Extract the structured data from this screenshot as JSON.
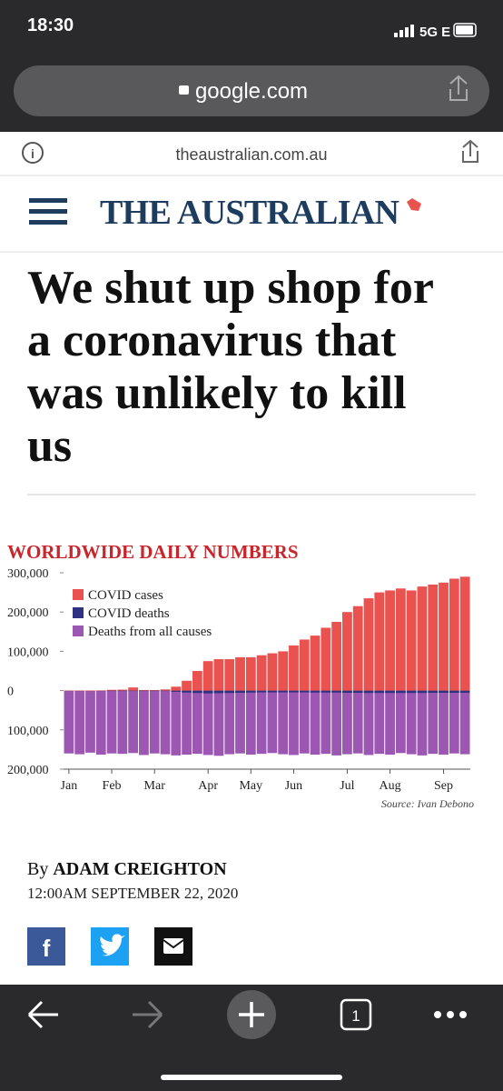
{
  "status": {
    "time": "18:30",
    "network": "5G E"
  },
  "browser": {
    "address": "google.com",
    "site": "theaustralian.com.au",
    "tabs": "1"
  },
  "masthead": "THE AUSTRALIAN",
  "headline": [
    "We shut up shop for",
    "a coronavirus that",
    "was unlikely to kill",
    "us"
  ],
  "byline": {
    "prefix": "By",
    "author": "ADAM CREIGHTON",
    "date": "12:00AM SEPTEMBER 22, 2020"
  },
  "social": {
    "facebook": "f"
  },
  "chart_data": {
    "type": "bar",
    "title": "WORLDWIDE DAILY NUMBERS",
    "source": "Source: Ivan Debono",
    "categories": [
      "Jan",
      null,
      null,
      null,
      "Feb",
      null,
      null,
      null,
      "Mar",
      null,
      null,
      null,
      null,
      "Apr",
      null,
      null,
      null,
      "May",
      null,
      null,
      null,
      "Jun",
      null,
      null,
      null,
      null,
      "Jul",
      null,
      null,
      null,
      "Aug",
      null,
      null,
      null,
      null,
      "Sep",
      null,
      null
    ],
    "series": [
      {
        "name": "Deaths from all causes",
        "color": "#9b57b2",
        "values": [
          -160000,
          -162000,
          -158000,
          -163000,
          -160000,
          -161000,
          -159000,
          -164000,
          -160000,
          -162000,
          -165000,
          -163000,
          -161000,
          -164000,
          -166000,
          -162000,
          -160000,
          -163000,
          -161000,
          -159000,
          -162000,
          -164000,
          -160000,
          -163000,
          -161000,
          -165000,
          -162000,
          -160000,
          -164000,
          -161000,
          -163000,
          -159000,
          -162000,
          -165000,
          -161000,
          -163000,
          -160000,
          -162000
        ]
      },
      {
        "name": "COVID deaths",
        "color": "#2e3280",
        "values": [
          0,
          0,
          0,
          0,
          -100,
          -200,
          -300,
          -200,
          -300,
          -1000,
          -3000,
          -5000,
          -6000,
          -7000,
          -6500,
          -6000,
          -5500,
          -5000,
          -4500,
          -4500,
          -4500,
          -4500,
          -4500,
          -5000,
          -5000,
          -5000,
          -5500,
          -5500,
          -6000,
          -6000,
          -6000,
          -6000,
          -6000,
          -6000,
          -5500,
          -5500,
          -5500,
          -5500
        ]
      },
      {
        "name": "COVID cases",
        "color": "#e9524e",
        "values": [
          0,
          0,
          0,
          500,
          2000,
          2500,
          8000,
          1500,
          1500,
          3000,
          10000,
          25000,
          50000,
          75000,
          80000,
          80000,
          85000,
          85000,
          90000,
          95000,
          100000,
          115000,
          130000,
          140000,
          160000,
          175000,
          200000,
          215000,
          235000,
          250000,
          255000,
          260000,
          255000,
          265000,
          270000,
          275000,
          285000,
          290000
        ]
      }
    ],
    "legend_order": [
      2,
      1,
      0
    ],
    "ylim": [
      -200000,
      300000
    ],
    "yticks": [
      {
        "value": 300000,
        "label": "300,000"
      },
      {
        "value": 200000,
        "label": "200,000"
      },
      {
        "value": 100000,
        "label": "100,000"
      },
      0,
      {
        "value": -100000,
        "label": "100,000"
      },
      {
        "value": -200000,
        "label": "200,000"
      }
    ]
  }
}
